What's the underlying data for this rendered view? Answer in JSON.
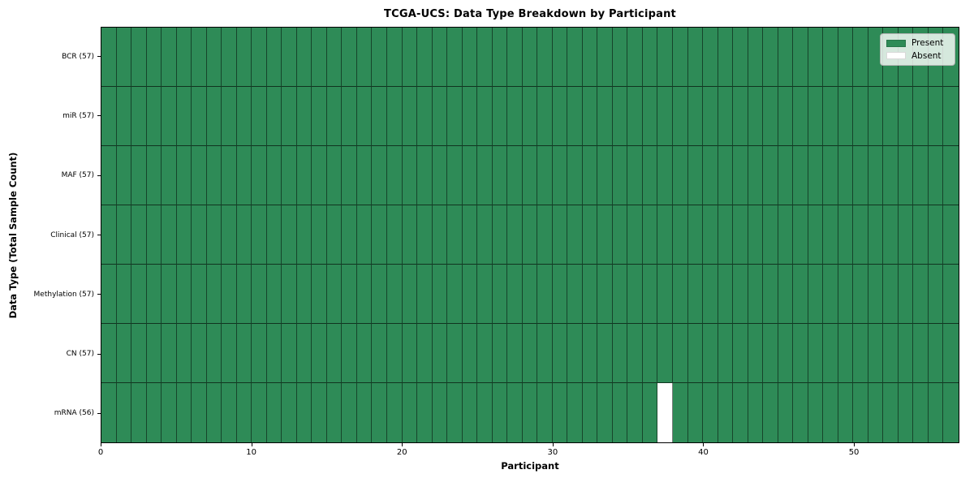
{
  "title": "TCGA-UCS: Data Type Breakdown by Participant",
  "colors": {
    "present": "#2e8b57",
    "absent": "#ffffff"
  },
  "chart_data": {
    "type": "heatmap",
    "title": "TCGA-UCS: Data Type Breakdown by Participant",
    "xlabel": "Participant",
    "ylabel": "Data Type (Total Sample Count)",
    "x_range": [
      0,
      57
    ],
    "x_ticks": [
      0,
      10,
      20,
      30,
      40,
      50
    ],
    "participants_total": 57,
    "legend_labels": [
      "Present",
      "Absent"
    ],
    "legend_position": "upper right",
    "grid": true,
    "rows": [
      {
        "data_type": "BCR",
        "label": "BCR (57)",
        "sample_count": 57,
        "absent_participants": []
      },
      {
        "data_type": "miR",
        "label": "miR (57)",
        "sample_count": 57,
        "absent_participants": []
      },
      {
        "data_type": "MAF",
        "label": "MAF (57)",
        "sample_count": 57,
        "absent_participants": []
      },
      {
        "data_type": "Clinical",
        "label": "Clinical (57)",
        "sample_count": 57,
        "absent_participants": []
      },
      {
        "data_type": "Methylation",
        "label": "Methylation (57)",
        "sample_count": 57,
        "absent_participants": []
      },
      {
        "data_type": "CN",
        "label": "CN (57)",
        "sample_count": 57,
        "absent_participants": []
      },
      {
        "data_type": "mRNA",
        "label": "mRNA (56)",
        "sample_count": 56,
        "absent_participants": [
          37
        ]
      }
    ]
  }
}
